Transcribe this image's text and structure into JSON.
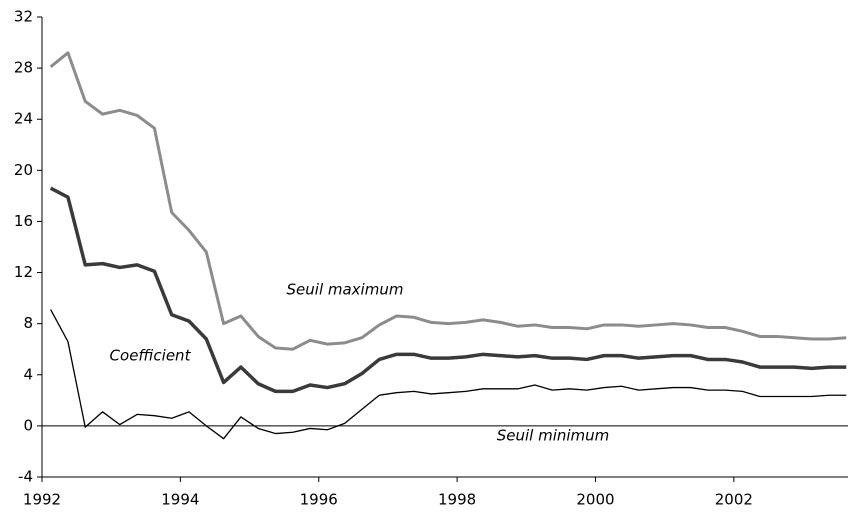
{
  "chart_data": {
    "type": "line",
    "x": [
      1992.125,
      1992.375,
      1992.625,
      1992.875,
      1993.125,
      1993.375,
      1993.625,
      1993.875,
      1994.125,
      1994.375,
      1994.625,
      1994.875,
      1995.125,
      1995.375,
      1995.625,
      1995.875,
      1996.125,
      1996.375,
      1996.625,
      1996.875,
      1997.125,
      1997.375,
      1997.625,
      1997.875,
      1998.125,
      1998.375,
      1998.625,
      1998.875,
      1999.125,
      1999.375,
      1999.625,
      1999.875,
      2000.125,
      2000.375,
      2000.625,
      2000.875,
      2001.125,
      2001.375,
      2001.625,
      2001.875,
      2002.125,
      2002.375,
      2002.625,
      2002.875,
      2003.125,
      2003.375,
      2003.625
    ],
    "series": [
      {
        "name": "Seuil maximum",
        "color": "#8c8c8c",
        "values": [
          28.1,
          29.2,
          25.4,
          24.4,
          24.7,
          24.3,
          23.3,
          16.7,
          15.3,
          13.6,
          8.0,
          8.6,
          7.0,
          6.1,
          6.0,
          6.7,
          6.4,
          6.5,
          6.9,
          7.9,
          8.6,
          8.5,
          8.1,
          8.0,
          8.1,
          8.3,
          8.1,
          7.8,
          7.9,
          7.7,
          7.7,
          7.6,
          7.9,
          7.9,
          7.8,
          7.9,
          8.0,
          7.9,
          7.7,
          7.7,
          7.4,
          7.0,
          7.0,
          6.9,
          6.8,
          6.8,
          6.9
        ]
      },
      {
        "name": "Coefficient",
        "color": "#3a3a3a",
        "values": [
          18.6,
          17.9,
          12.6,
          12.7,
          12.4,
          12.6,
          12.1,
          8.7,
          8.2,
          6.8,
          3.4,
          4.6,
          3.3,
          2.7,
          2.7,
          3.2,
          3.0,
          3.3,
          4.1,
          5.2,
          5.6,
          5.6,
          5.3,
          5.3,
          5.4,
          5.6,
          5.5,
          5.4,
          5.5,
          5.3,
          5.3,
          5.2,
          5.5,
          5.5,
          5.3,
          5.4,
          5.5,
          5.5,
          5.2,
          5.2,
          5.0,
          4.6,
          4.6,
          4.6,
          4.5,
          4.6,
          4.6
        ]
      },
      {
        "name": "Seuil minimum",
        "color": "#000000",
        "values": [
          9.1,
          6.6,
          -0.1,
          1.1,
          0.1,
          0.9,
          0.8,
          0.6,
          1.1,
          0.0,
          -1.0,
          0.7,
          -0.2,
          -0.6,
          -0.5,
          -0.2,
          -0.3,
          0.2,
          1.3,
          2.4,
          2.6,
          2.7,
          2.5,
          2.6,
          2.7,
          2.9,
          2.9,
          2.9,
          3.2,
          2.8,
          2.9,
          2.8,
          3.0,
          3.1,
          2.8,
          2.9,
          3.0,
          3.0,
          2.8,
          2.8,
          2.7,
          2.3,
          2.3,
          2.3,
          2.3,
          2.4,
          2.4
        ]
      }
    ],
    "xlim": [
      1992,
      2003.65
    ],
    "xticks": [
      1992,
      1994,
      1996,
      1998,
      2000,
      2002
    ],
    "ylim": [
      -4,
      32
    ],
    "yticks": [
      -4,
      0,
      4,
      8,
      12,
      16,
      20,
      24,
      28,
      32
    ],
    "zero_line": true
  }
}
